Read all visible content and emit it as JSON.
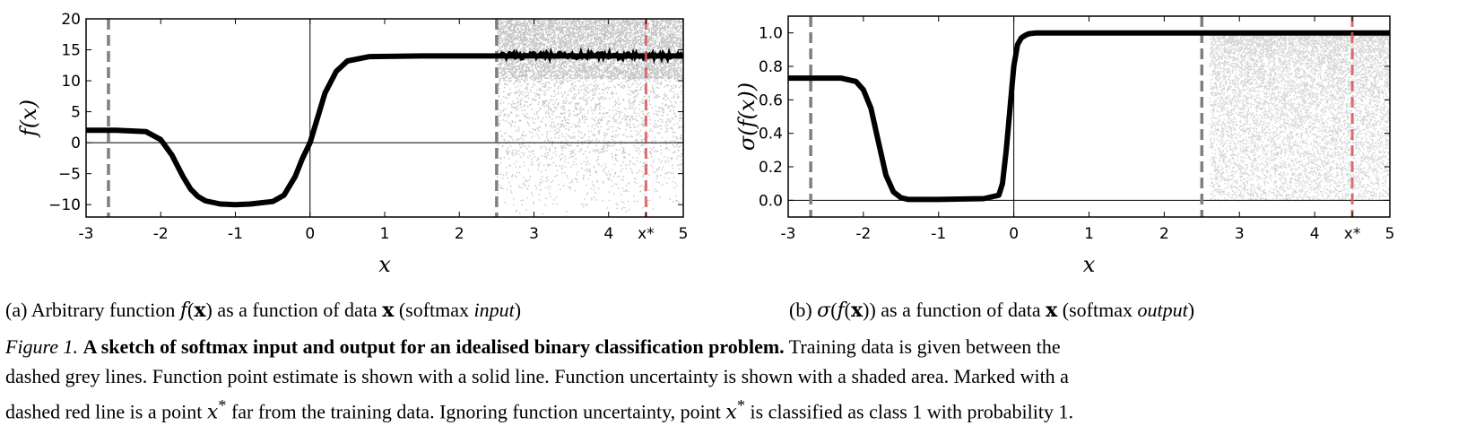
{
  "chart_data": [
    {
      "type": "line",
      "panel": "a",
      "xlabel": "x",
      "ylabel": "f(x)",
      "xlim": [
        -3,
        5
      ],
      "ylim": [
        -12,
        20
      ],
      "xticks": [
        {
          "v": -3,
          "label": "-3"
        },
        {
          "v": -2,
          "label": "-2"
        },
        {
          "v": -1,
          "label": "-1"
        },
        {
          "v": 0,
          "label": "0"
        },
        {
          "v": 1,
          "label": "1"
        },
        {
          "v": 2,
          "label": "2"
        },
        {
          "v": 3,
          "label": "3"
        },
        {
          "v": 4,
          "label": "4"
        },
        {
          "v": 4.5,
          "label": "x*"
        },
        {
          "v": 5,
          "label": "5"
        }
      ],
      "yticks": [
        {
          "v": -10,
          "label": "−10"
        },
        {
          "v": -5,
          "label": "−5"
        },
        {
          "v": 0,
          "label": "0"
        },
        {
          "v": 5,
          "label": "5"
        },
        {
          "v": 10,
          "label": "10"
        },
        {
          "v": 15,
          "label": "15"
        },
        {
          "v": 20,
          "label": "20"
        }
      ],
      "grey_dashed_x": [
        -2.7,
        2.5
      ],
      "red_dashed_x": 4.5,
      "series": [
        {
          "x": [
            -3,
            -2.6,
            -2.2,
            -2.0,
            -1.85,
            -1.7,
            -1.6,
            -1.5,
            -1.4,
            -1.2,
            -1.0,
            -0.8,
            -0.5,
            -0.35,
            -0.2,
            -0.1,
            0,
            0.1,
            0.2,
            0.35,
            0.5,
            0.8,
            1.5,
            2.5,
            3,
            3.5,
            4,
            4.5,
            5
          ],
          "y": [
            2,
            2,
            1.8,
            0.5,
            -2,
            -5.5,
            -7.5,
            -8.7,
            -9.4,
            -9.9,
            -10,
            -9.9,
            -9.5,
            -8.5,
            -5.5,
            -2.5,
            0,
            4,
            8,
            11.5,
            13.2,
            13.9,
            14,
            14,
            14,
            14,
            14,
            14,
            14
          ]
        }
      ],
      "uncertainty_x_range": [
        2.5,
        5
      ],
      "uncertainty_y_range": [
        -12,
        20
      ]
    },
    {
      "type": "line",
      "panel": "b",
      "xlabel": "x",
      "ylabel": "σ(f(x))",
      "xlim": [
        -3,
        5
      ],
      "ylim": [
        -0.1,
        1.1
      ],
      "xticks": [
        {
          "v": -3,
          "label": "-3"
        },
        {
          "v": -2,
          "label": "-2"
        },
        {
          "v": -1,
          "label": "-1"
        },
        {
          "v": 0,
          "label": "0"
        },
        {
          "v": 1,
          "label": "1"
        },
        {
          "v": 2,
          "label": "2"
        },
        {
          "v": 3,
          "label": "3"
        },
        {
          "v": 4,
          "label": "4"
        },
        {
          "v": 4.5,
          "label": "x*"
        },
        {
          "v": 5,
          "label": "5"
        }
      ],
      "yticks": [
        {
          "v": 0.0,
          "label": "0.0"
        },
        {
          "v": 0.2,
          "label": "0.2"
        },
        {
          "v": 0.4,
          "label": "0.4"
        },
        {
          "v": 0.6,
          "label": "0.6"
        },
        {
          "v": 0.8,
          "label": "0.8"
        },
        {
          "v": 1.0,
          "label": "1.0"
        }
      ],
      "grey_dashed_x": [
        -2.7,
        2.5
      ],
      "red_dashed_x": 4.5,
      "series": [
        {
          "x": [
            -3,
            -2.3,
            -2.1,
            -2.0,
            -1.9,
            -1.8,
            -1.7,
            -1.6,
            -1.5,
            -1.4,
            -1.0,
            -0.4,
            -0.2,
            -0.15,
            -0.1,
            -0.05,
            0,
            0.05,
            0.1,
            0.15,
            0.2,
            0.3,
            1,
            2.5,
            5
          ],
          "y": [
            0.73,
            0.73,
            0.71,
            0.66,
            0.55,
            0.35,
            0.15,
            0.05,
            0.015,
            0.005,
            0.005,
            0.01,
            0.03,
            0.1,
            0.3,
            0.55,
            0.8,
            0.93,
            0.97,
            0.985,
            0.995,
            1.0,
            1.0,
            1.0,
            1.0
          ]
        }
      ],
      "uncertainty_x_range": [
        2.6,
        5
      ],
      "uncertainty_y_range": [
        0.0,
        1.0
      ]
    }
  ],
  "captions": {
    "a_prefix": "(a) Arbitrary function ",
    "a_fx": "f",
    "a_x": "x",
    "a_mid": " as a function of data ",
    "a_data": "x",
    "a_open": " (softmax ",
    "a_italic": "input",
    "a_close": ")",
    "b_prefix": "(b) ",
    "b_sigma": "σ",
    "b_f": "f",
    "b_x": "x",
    "b_mid": " as a function of data ",
    "b_data": "x",
    "b_open": " (softmax ",
    "b_italic": "output",
    "b_close": ")"
  },
  "figure_caption": {
    "label": "Figure 1.",
    "bold": "A sketch of softmax input and output for an idealised binary classification problem.",
    "line1_rest": "Training data is given between the",
    "line2": "dashed grey lines. Function point estimate is shown with a solid line. Function uncertainty is shown with a shaded area. Marked with a",
    "line3_a": "dashed red line is a point ",
    "xstar": "x",
    "star": "*",
    "line3_b": " far from the training data. Ignoring function uncertainty, point ",
    "line3_c": " is classified as class 1 with probability 1."
  }
}
